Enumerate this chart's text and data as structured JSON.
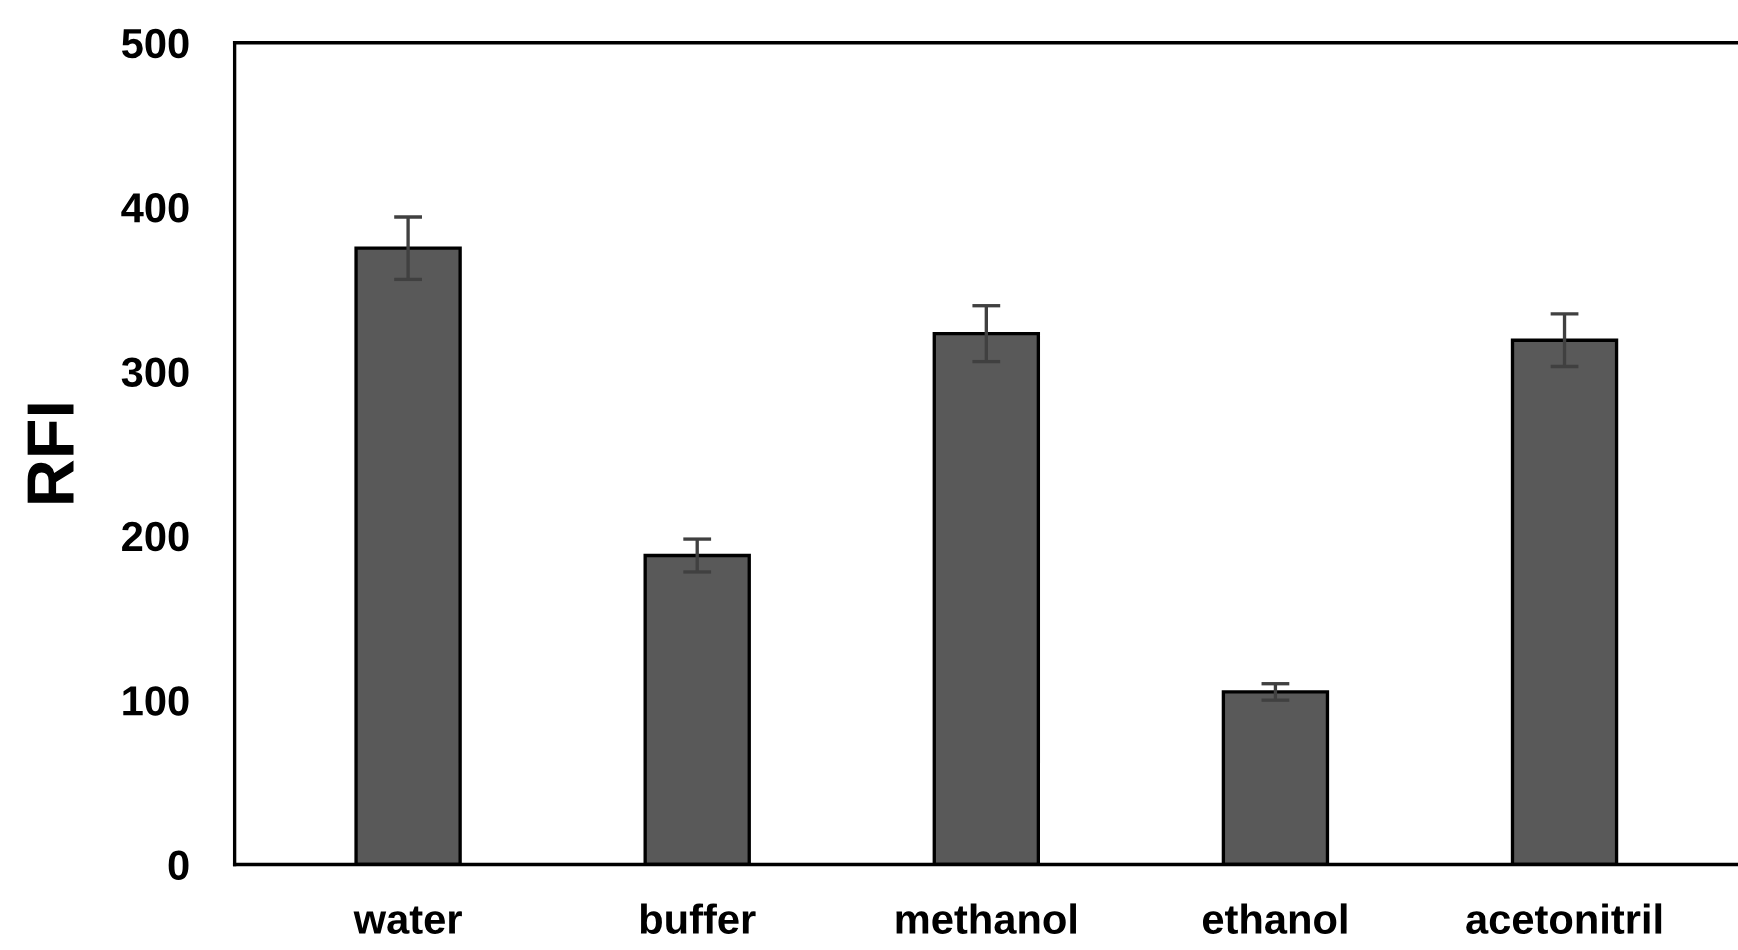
{
  "chart_data": {
    "type": "bar",
    "ylabel": "RFI",
    "categories": [
      "water",
      "buffer",
      "methanol",
      "ethanol",
      "acetonitril"
    ],
    "values": [
      375,
      188,
      323,
      105,
      319
    ],
    "errors": [
      19,
      10,
      17,
      5,
      16
    ],
    "color": "#595959",
    "ylim": [
      0,
      500
    ],
    "yticks": [
      0,
      100,
      200,
      300,
      400,
      500
    ],
    "grid": false
  }
}
